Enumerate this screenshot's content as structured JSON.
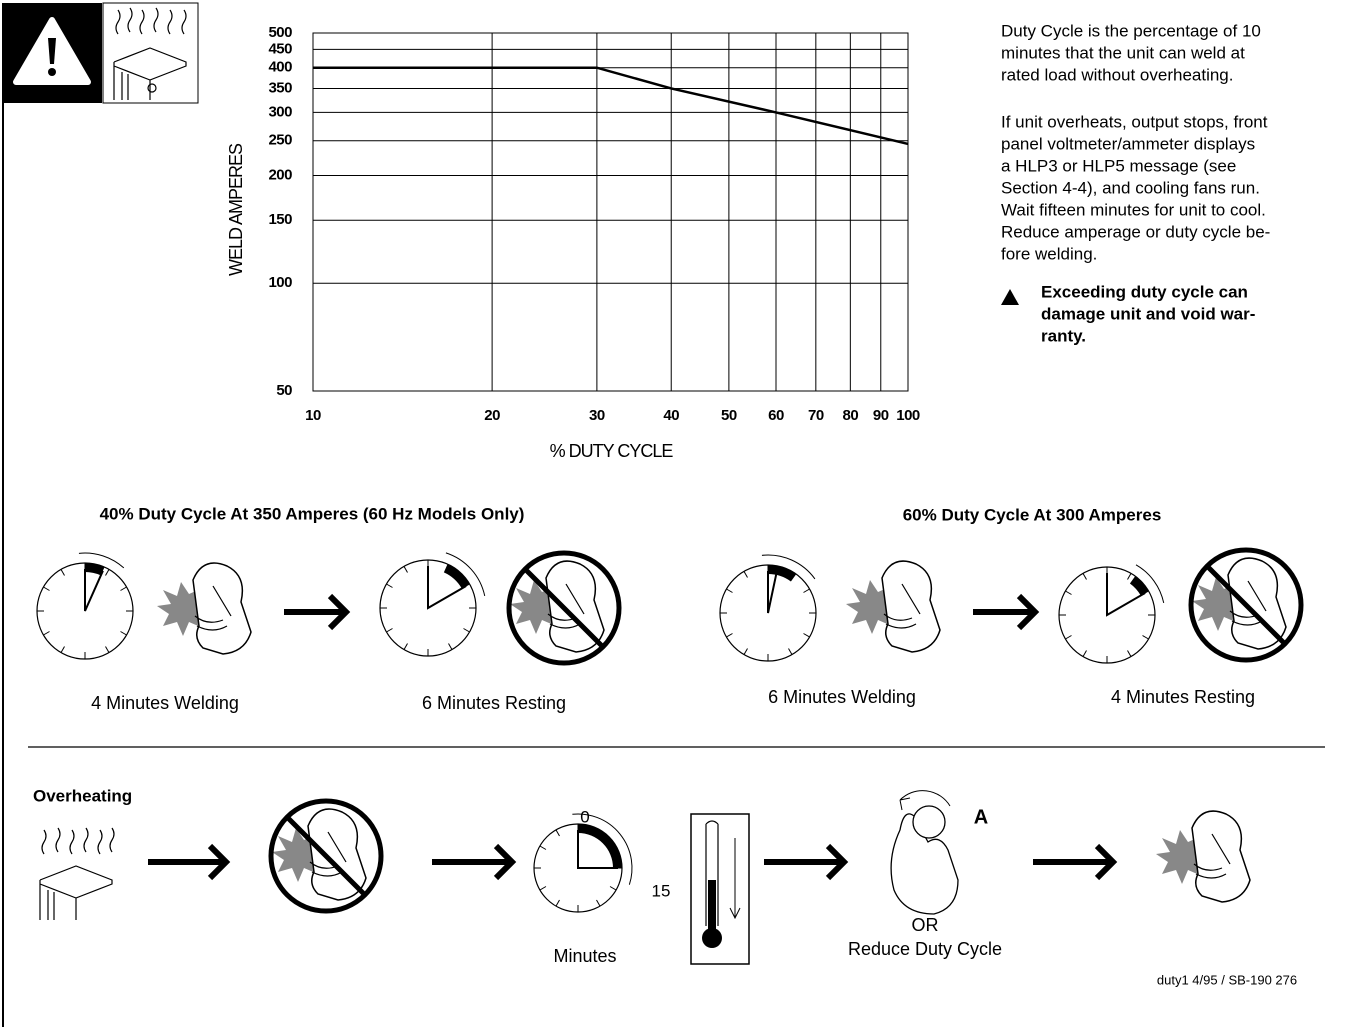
{
  "chart_data": {
    "type": "line",
    "x_label": "% DUTY CYCLE",
    "y_label": "WELD AMPERES",
    "x": [
      10,
      30,
      40,
      60,
      100
    ],
    "series": [
      {
        "color": "#000000",
        "values": [
          400,
          400,
          350,
          300,
          245
        ]
      }
    ],
    "xlim": [
      10,
      100
    ],
    "ylim": [
      50,
      500
    ],
    "xticks": [
      10,
      20,
      30,
      40,
      50,
      60,
      70,
      80,
      90,
      100
    ],
    "yticks": [
      50,
      100,
      150,
      200,
      250,
      300,
      350,
      400,
      450,
      500
    ],
    "log_x": true,
    "log_y": true,
    "grid": true
  },
  "description": {
    "paragraphs": [
      [
        "Duty Cycle is the percentage of 10",
        "minutes that the unit can weld at",
        "rated load without overheating."
      ],
      [
        "If unit overheats, output stops, front",
        "panel voltmeter/ammeter displays",
        "a HLP3 or HLP5 message (see",
        "Section 4-4), and cooling fans run.",
        "Wait fifteen minutes for unit to cool.",
        "Reduce amperage or duty cycle be-",
        "fore welding."
      ]
    ],
    "warning": [
      "Exceeding duty cycle can",
      "damage unit and void war-",
      "ranty."
    ]
  },
  "examples": [
    {
      "title": "40% Duty Cycle At 350 Amperes (60 Hz Models Only)",
      "captions": [
        "4 Minutes Welding",
        "6 Minutes Resting"
      ]
    },
    {
      "title": "60% Duty Cycle At 300 Amperes",
      "captions": [
        "6 Minutes Welding",
        "4 Minutes Resting"
      ]
    }
  ],
  "overheating": {
    "title": "Overheating",
    "clock_start": "0",
    "clock_end": "15",
    "clock_caption": "Minutes",
    "knob_label": "A",
    "or": "OR",
    "reduce": "Reduce Duty Cycle"
  },
  "footer": "duty1 4/95 / SB-190 276"
}
